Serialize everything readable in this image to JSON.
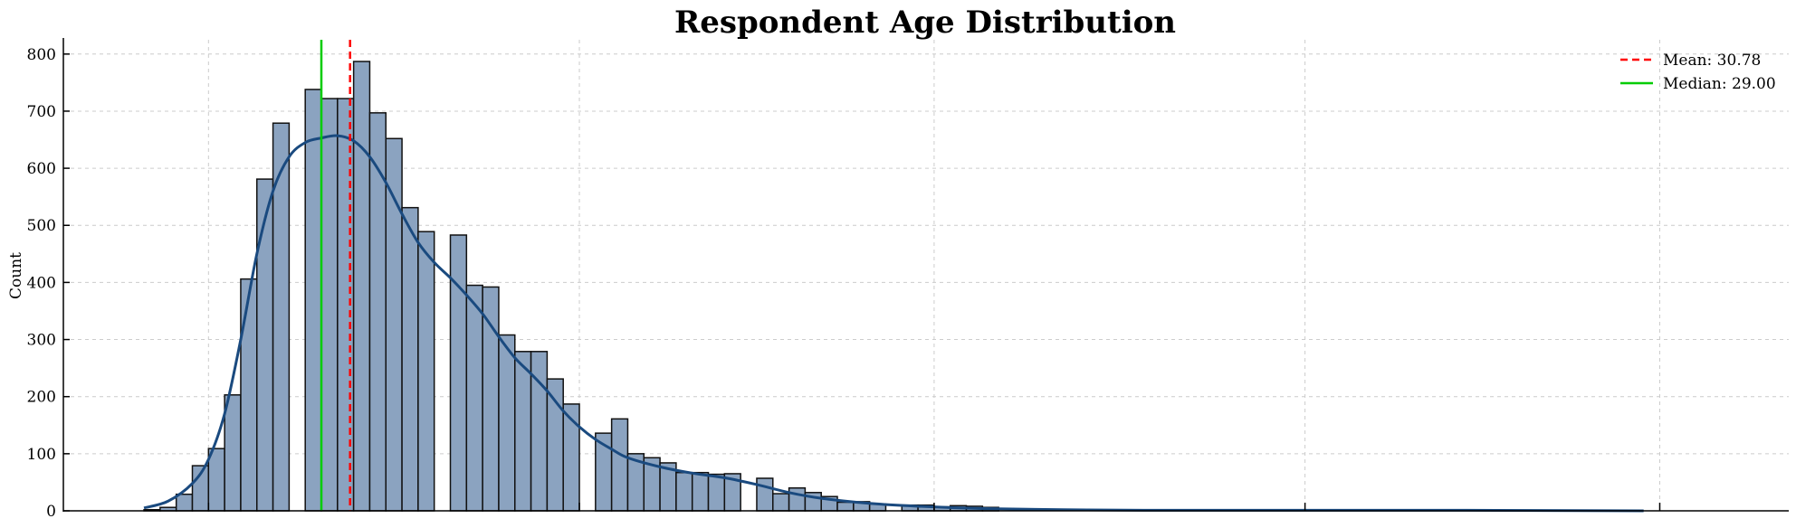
{
  "chart_data": {
    "type": "bar",
    "title": "Respondent Age Distribution",
    "xlabel": "",
    "ylabel": "Count",
    "ylim": [
      0,
      825
    ],
    "xlim": [
      13,
      120
    ],
    "yticks": [
      0,
      100,
      200,
      300,
      400,
      500,
      600,
      700,
      800
    ],
    "xticks_visible": [
      22,
      45,
      67,
      90,
      112
    ],
    "grid": true,
    "legend_position": "top-right",
    "bin_width": 1,
    "bins": [
      {
        "x": 18,
        "count": 2
      },
      {
        "x": 19,
        "count": 6
      },
      {
        "x": 20,
        "count": 29
      },
      {
        "x": 21,
        "count": 79
      },
      {
        "x": 22,
        "count": 109
      },
      {
        "x": 23,
        "count": 203
      },
      {
        "x": 24,
        "count": 406
      },
      {
        "x": 25,
        "count": 581
      },
      {
        "x": 26,
        "count": 679
      },
      {
        "x": 28,
        "count": 738
      },
      {
        "x": 29,
        "count": 722
      },
      {
        "x": 30,
        "count": 722
      },
      {
        "x": 31,
        "count": 787
      },
      {
        "x": 32,
        "count": 697
      },
      {
        "x": 33,
        "count": 652
      },
      {
        "x": 34,
        "count": 531
      },
      {
        "x": 35,
        "count": 489
      },
      {
        "x": 37,
        "count": 483
      },
      {
        "x": 38,
        "count": 395
      },
      {
        "x": 39,
        "count": 392
      },
      {
        "x": 40,
        "count": 308
      },
      {
        "x": 41,
        "count": 279
      },
      {
        "x": 42,
        "count": 279
      },
      {
        "x": 43,
        "count": 231
      },
      {
        "x": 44,
        "count": 187
      },
      {
        "x": 46,
        "count": 136
      },
      {
        "x": 47,
        "count": 161
      },
      {
        "x": 48,
        "count": 100
      },
      {
        "x": 49,
        "count": 93
      },
      {
        "x": 50,
        "count": 84
      },
      {
        "x": 51,
        "count": 67
      },
      {
        "x": 52,
        "count": 67
      },
      {
        "x": 53,
        "count": 64
      },
      {
        "x": 54,
        "count": 65
      },
      {
        "x": 56,
        "count": 57
      },
      {
        "x": 57,
        "count": 30
      },
      {
        "x": 58,
        "count": 40
      },
      {
        "x": 59,
        "count": 32
      },
      {
        "x": 60,
        "count": 25
      },
      {
        "x": 61,
        "count": 15
      },
      {
        "x": 62,
        "count": 16
      },
      {
        "x": 63,
        "count": 12
      },
      {
        "x": 65,
        "count": 10
      },
      {
        "x": 66,
        "count": 10
      },
      {
        "x": 67,
        "count": 7
      },
      {
        "x": 68,
        "count": 9
      },
      {
        "x": 69,
        "count": 8
      },
      {
        "x": 70,
        "count": 6
      }
    ],
    "kde": [
      [
        18,
        5
      ],
      [
        19.5,
        17
      ],
      [
        21,
        48
      ],
      [
        22,
        90
      ],
      [
        23,
        170
      ],
      [
        24,
        300
      ],
      [
        25,
        450
      ],
      [
        26,
        560
      ],
      [
        27,
        620
      ],
      [
        28,
        645
      ],
      [
        29,
        653
      ],
      [
        30,
        657
      ],
      [
        31,
        648
      ],
      [
        32,
        620
      ],
      [
        33,
        575
      ],
      [
        34,
        520
      ],
      [
        35,
        470
      ],
      [
        36,
        435
      ],
      [
        37,
        408
      ],
      [
        38,
        378
      ],
      [
        39,
        345
      ],
      [
        40,
        305
      ],
      [
        41,
        268
      ],
      [
        42,
        240
      ],
      [
        43,
        210
      ],
      [
        44,
        175
      ],
      [
        45,
        147
      ],
      [
        46,
        125
      ],
      [
        47,
        108
      ],
      [
        48,
        93
      ],
      [
        50,
        77
      ],
      [
        52,
        66
      ],
      [
        54,
        58
      ],
      [
        56,
        46
      ],
      [
        58,
        32
      ],
      [
        60,
        22
      ],
      [
        63,
        13
      ],
      [
        66,
        8
      ],
      [
        70,
        4
      ],
      [
        75,
        2
      ],
      [
        80,
        1
      ],
      [
        90,
        1
      ],
      [
        100,
        1
      ],
      [
        111,
        0
      ]
    ],
    "reference_lines": [
      {
        "label": "Mean: 30.78",
        "x": 30.78,
        "color": "#ff0000",
        "style": "dashed"
      },
      {
        "label": "Median: 29.00",
        "x": 29.0,
        "color": "#00cc00",
        "style": "solid"
      }
    ],
    "colors": {
      "bar_fill": "#8ba3c0",
      "bar_edge": "#111111",
      "kde": "#1a4a7f"
    }
  }
}
